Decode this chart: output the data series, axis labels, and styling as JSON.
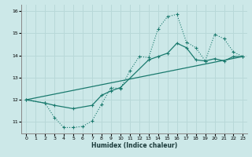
{
  "title": "",
  "xlabel": "Humidex (Indice chaleur)",
  "ylabel": "",
  "bg_color": "#cce8e8",
  "grid_color": "#b8d8d8",
  "line_color": "#1a7a6e",
  "xlim": [
    -0.5,
    23.5
  ],
  "ylim": [
    10.5,
    16.3
  ],
  "xticks": [
    0,
    1,
    2,
    3,
    4,
    5,
    6,
    7,
    8,
    9,
    10,
    11,
    12,
    13,
    14,
    15,
    16,
    17,
    18,
    19,
    20,
    21,
    22,
    23
  ],
  "yticks": [
    11,
    12,
    13,
    14,
    15,
    16
  ],
  "curve1_x": [
    0,
    2,
    3,
    4,
    5,
    6,
    7,
    8,
    9,
    10,
    11,
    12,
    13,
    14,
    15,
    16,
    17,
    18,
    19,
    20,
    21,
    22,
    23
  ],
  "curve1_y": [
    12.0,
    11.85,
    11.2,
    10.75,
    10.75,
    10.8,
    11.05,
    11.8,
    12.55,
    12.5,
    13.3,
    13.95,
    13.9,
    15.2,
    15.75,
    15.85,
    14.6,
    14.35,
    13.75,
    14.95,
    14.75,
    14.15,
    13.95
  ],
  "curve2_x": [
    0,
    2,
    3,
    5,
    7,
    8,
    9,
    10,
    13,
    14,
    15,
    16,
    17,
    18,
    19,
    20,
    21,
    22,
    23
  ],
  "curve2_y": [
    12.0,
    11.85,
    11.75,
    11.6,
    11.75,
    12.2,
    12.4,
    12.55,
    13.8,
    13.95,
    14.1,
    14.55,
    14.35,
    13.8,
    13.75,
    13.85,
    13.75,
    13.95,
    13.95
  ],
  "curve3_x": [
    0,
    23
  ],
  "curve3_y": [
    12.0,
    13.95
  ]
}
